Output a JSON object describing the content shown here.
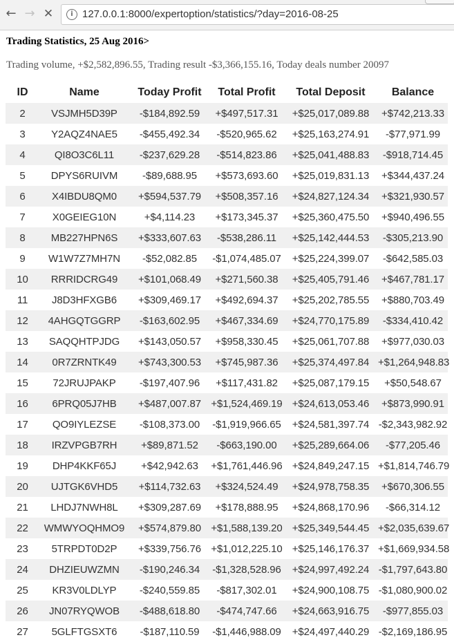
{
  "browser": {
    "url": "127.0.0.1:8000/expertoption/statistics/?day=2016-08-25",
    "back_icon": "←",
    "forward_icon": "→",
    "stop_icon": "✕",
    "info_icon": "i"
  },
  "page": {
    "title": "Trading Statistics, 25 Aug 2016>",
    "summary": "Trading volume, +$2,582,896.55, Trading result -$3,366,155.16, Today deals number 20097"
  },
  "table": {
    "columns": [
      "ID",
      "Name",
      "Today Profit",
      "Total Profit",
      "Total Deposit",
      "Balance"
    ],
    "rows": [
      [
        "2",
        "VSJMH5D39P",
        "-$184,892.59",
        "+$497,517.31",
        "+$25,017,089.88",
        "+$742,213.33"
      ],
      [
        "3",
        "Y2AQZ4NAE5",
        "-$455,492.34",
        "-$520,965.62",
        "+$25,163,274.91",
        "-$77,971.99"
      ],
      [
        "4",
        "QI8O3C6L11",
        "-$237,629.28",
        "-$514,823.86",
        "+$25,041,488.83",
        "-$918,714.45"
      ],
      [
        "5",
        "DPYS6RUIVM",
        "-$89,688.95",
        "+$573,693.60",
        "+$25,019,831.13",
        "+$344,437.24"
      ],
      [
        "6",
        "X4IBDU8QM0",
        "+$594,537.79",
        "+$508,357.16",
        "+$24,827,124.34",
        "+$321,930.57"
      ],
      [
        "7",
        "X0GEIEG10N",
        "+$4,114.23",
        "+$173,345.37",
        "+$25,360,475.50",
        "+$940,496.55"
      ],
      [
        "8",
        "MB227HPN6S",
        "+$333,607.63",
        "-$538,286.11",
        "+$25,142,444.53",
        "-$305,213.90"
      ],
      [
        "9",
        "W1W7Z7MH7N",
        "-$52,082.85",
        "-$1,074,485.07",
        "+$25,224,399.07",
        "-$642,585.03"
      ],
      [
        "10",
        "RRRIDCRG49",
        "+$101,068.49",
        "+$271,560.38",
        "+$25,405,791.46",
        "+$467,781.17"
      ],
      [
        "11",
        "J8D3HFXGB6",
        "+$309,469.17",
        "+$492,694.37",
        "+$25,202,785.55",
        "+$880,703.49"
      ],
      [
        "12",
        "4AHGQTGGRP",
        "-$163,602.95",
        "+$467,334.69",
        "+$24,770,175.89",
        "-$334,410.42"
      ],
      [
        "13",
        "SAQQHTPJDG",
        "+$143,050.57",
        "+$958,330.45",
        "+$25,061,707.88",
        "+$977,030.03"
      ],
      [
        "14",
        "0R7ZRNTK49",
        "+$743,300.53",
        "+$745,987.36",
        "+$25,374,497.84",
        "+$1,264,948.83"
      ],
      [
        "15",
        "72JRUJPAKP",
        "-$197,407.96",
        "+$117,431.82",
        "+$25,087,179.15",
        "+$50,548.67"
      ],
      [
        "16",
        "6PRQ05J7HB",
        "+$487,007.87",
        "+$1,524,469.19",
        "+$24,613,053.46",
        "+$873,990.91"
      ],
      [
        "17",
        "QO9IYLEZSE",
        "-$108,373.00",
        "-$1,919,966.65",
        "+$24,581,397.74",
        "-$2,343,982.92"
      ],
      [
        "18",
        "IRZVPGB7RH",
        "+$89,871.52",
        "-$663,190.00",
        "+$25,289,664.06",
        "-$77,205.46"
      ],
      [
        "19",
        "DHP4KKF65J",
        "+$42,942.63",
        "+$1,761,446.96",
        "+$24,849,247.15",
        "+$1,814,746.79"
      ],
      [
        "20",
        "UJTGK6VHD5",
        "+$114,732.63",
        "+$324,524.49",
        "+$24,978,758.35",
        "+$670,306.55"
      ],
      [
        "21",
        "LHDJ7NWH8L",
        "+$309,287.69",
        "+$178,888.95",
        "+$24,868,170.96",
        "-$66,314.12"
      ],
      [
        "22",
        "WMWYOQHMO9",
        "+$574,879.80",
        "+$1,588,139.20",
        "+$25,349,544.45",
        "+$2,035,639.67"
      ],
      [
        "23",
        "5TRPDT0D2P",
        "+$339,756.76",
        "+$1,012,225.10",
        "+$25,146,176.37",
        "+$1,669,934.58"
      ],
      [
        "24",
        "DHZIEUWZMN",
        "-$190,246.34",
        "-$1,328,528.96",
        "+$24,997,492.24",
        "-$1,797,643.80"
      ],
      [
        "25",
        "KR3V0LDLYP",
        "-$240,559.85",
        "-$817,302.01",
        "+$24,900,108.75",
        "-$1,080,900.02"
      ],
      [
        "26",
        "JN07RYQWOB",
        "-$488,618.80",
        "-$474,747.66",
        "+$24,663,916.75",
        "-$977,855.03"
      ],
      [
        "27",
        "5GLFTGSXT6",
        "-$187,110.59",
        "-$1,446,988.09",
        "+$24,497,440.29",
        "-$2,169,186.95"
      ]
    ]
  }
}
